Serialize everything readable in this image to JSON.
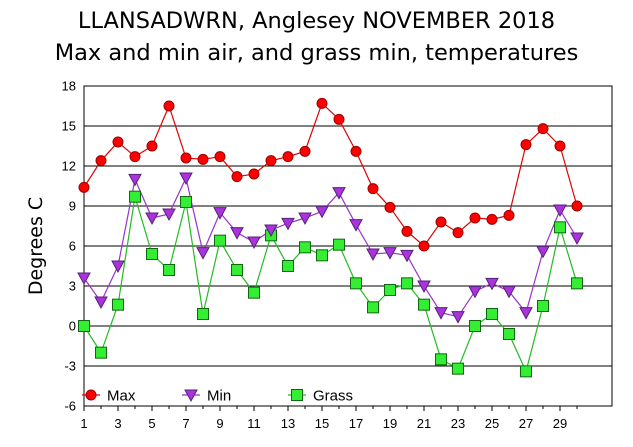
{
  "chart_data": {
    "type": "line",
    "title": "LLANSADWRN, Anglesey NOVEMBER 2018",
    "subtitle": "Max and min air, and grass min, temperatures",
    "xlabel": "",
    "ylabel": "Degrees C",
    "xlim": [
      1,
      30
    ],
    "ylim": [
      -6,
      18
    ],
    "x_ticks": [
      1,
      3,
      5,
      7,
      9,
      11,
      13,
      15,
      17,
      19,
      21,
      23,
      25,
      27,
      29
    ],
    "y_ticks": [
      -6,
      -3,
      0,
      3,
      6,
      9,
      12,
      15,
      18
    ],
    "grid": "horizontal",
    "legend_position": "bottom-left",
    "x": [
      1,
      2,
      3,
      4,
      5,
      6,
      7,
      8,
      9,
      10,
      11,
      12,
      13,
      14,
      15,
      16,
      17,
      18,
      19,
      20,
      21,
      22,
      23,
      24,
      25,
      26,
      27,
      28,
      29,
      30
    ],
    "series": [
      {
        "name": "Max",
        "color": "#ff0000",
        "line_color": "#e00000",
        "marker": "circle",
        "values": [
          10.4,
          12.4,
          13.8,
          12.7,
          13.5,
          16.5,
          12.6,
          12.5,
          12.7,
          11.2,
          11.4,
          12.4,
          12.7,
          13.1,
          16.7,
          15.5,
          13.1,
          10.3,
          8.9,
          7.1,
          6.0,
          7.8,
          7.0,
          8.1,
          8.0,
          8.3,
          13.6,
          14.8,
          13.5,
          9.0
        ]
      },
      {
        "name": "Min",
        "color": "#aa33dd",
        "line_color": "#9933cc",
        "marker": "triangle-down",
        "values": [
          3.6,
          1.8,
          4.5,
          11.0,
          8.1,
          8.4,
          11.1,
          5.5,
          8.5,
          7.0,
          6.3,
          7.2,
          7.7,
          8.1,
          8.6,
          10.0,
          7.6,
          5.4,
          5.5,
          5.3,
          3.0,
          1.0,
          0.7,
          2.6,
          3.2,
          2.6,
          1.0,
          5.6,
          8.7,
          6.6
        ]
      },
      {
        "name": "Grass",
        "color": "#33ee33",
        "line_color": "#22bb22",
        "marker": "square",
        "values": [
          0.0,
          -2.0,
          1.6,
          9.7,
          5.4,
          4.2,
          9.3,
          0.9,
          6.4,
          4.2,
          2.5,
          6.8,
          4.5,
          5.9,
          5.3,
          6.1,
          3.2,
          1.4,
          2.7,
          3.2,
          1.6,
          -2.5,
          -3.2,
          0.0,
          0.9,
          -0.6,
          -3.4,
          1.5,
          7.4,
          3.2
        ]
      }
    ]
  }
}
